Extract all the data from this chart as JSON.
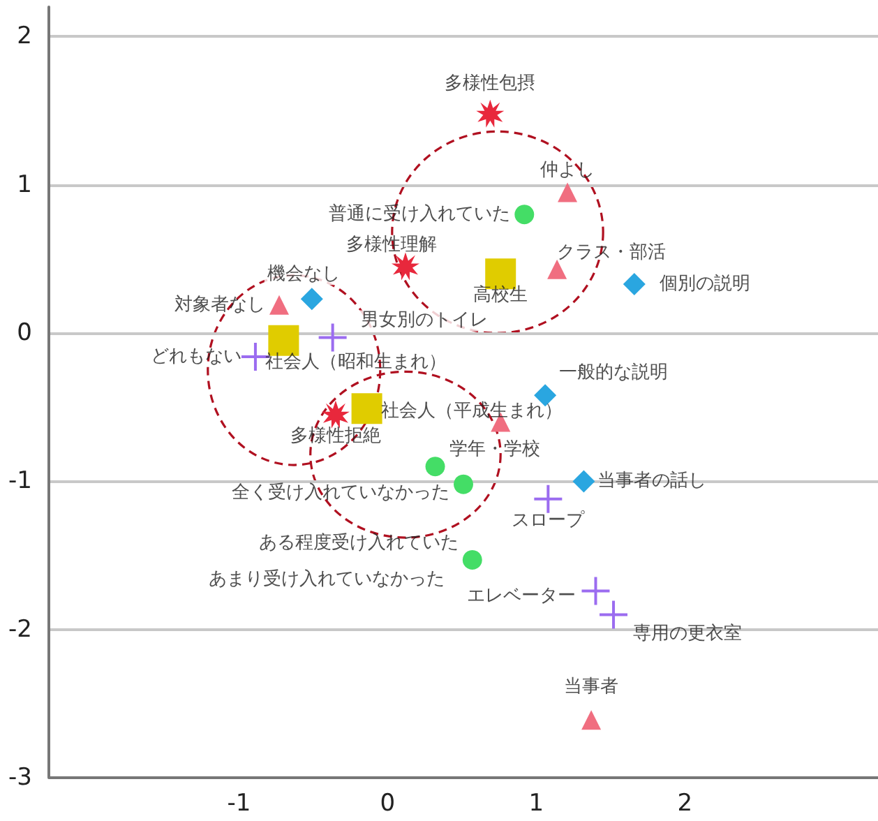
{
  "chart_data": {
    "type": "scatter",
    "xlim": [
      -2.28,
      3.3
    ],
    "ylim": [
      -3,
      2.2
    ],
    "xticks": [
      -1,
      0,
      1,
      2
    ],
    "yticks": [
      -3,
      -2,
      -1,
      0,
      1,
      2
    ],
    "grid": "y",
    "series": [
      {
        "color": "#e8283c",
        "marker": "star",
        "x": [
          0.69,
          0.12,
          -0.35
        ],
        "values": [
          1.48,
          0.45,
          -0.55
        ]
      },
      {
        "color": "#e0cc00",
        "marker": "square",
        "x": [
          0.76,
          -0.7,
          -0.14
        ],
        "values": [
          0.4,
          -0.05,
          -0.51
        ]
      },
      {
        "color": "#44dd66",
        "marker": "circle",
        "x": [
          0.92,
          0.32,
          0.51,
          0.57
        ],
        "values": [
          0.8,
          -0.9,
          -1.02,
          -1.53
        ]
      },
      {
        "color": "#f06e80",
        "marker": "triangle",
        "x": [
          1.21,
          1.14,
          -0.73,
          0.76,
          1.37
        ],
        "values": [
          0.95,
          0.43,
          0.19,
          -0.6,
          -2.61
        ]
      },
      {
        "color": "#2aa6e0",
        "marker": "diamond",
        "x": [
          -0.51,
          1.66,
          1.06,
          1.32
        ],
        "values": [
          0.23,
          0.33,
          -0.42,
          -1.0
        ]
      },
      {
        "color": "#9b6cf0",
        "marker": "cross",
        "x": [
          -0.89,
          -0.37,
          1.08,
          1.4,
          1.52
        ],
        "values": [
          -0.16,
          -0.03,
          -1.12,
          -1.74,
          -1.9
        ]
      }
    ],
    "annotations": [
      {
        "text": "多様性包摂",
        "x": 0.69,
        "y": 1.48
      },
      {
        "text": "多様性理解",
        "x": 0.12,
        "y": 0.45
      },
      {
        "text": "多様性拒絶",
        "x": -0.35,
        "y": -0.55
      },
      {
        "text": "高校生",
        "x": 0.76,
        "y": 0.4
      },
      {
        "text": "社会人（昭和生まれ）",
        "x": -0.7,
        "y": -0.05
      },
      {
        "text": "社会人（平成生まれ）",
        "x": -0.14,
        "y": -0.51
      },
      {
        "text": "普通に受け入れていた",
        "x": 0.92,
        "y": 0.8
      },
      {
        "text": "学年・学校",
        "x": 0.32,
        "y": -0.9
      },
      {
        "text": "全く受け入れていなかった",
        "x": 0.51,
        "y": -1.02
      },
      {
        "text": "ある程度受け入れていた",
        "x": 0.57,
        "y": -1.53
      },
      {
        "text": "あまり受け入れていなかった",
        "x": 0.57,
        "y": -1.53
      },
      {
        "text": "仲よし",
        "x": 1.21,
        "y": 0.95
      },
      {
        "text": "クラス・部活",
        "x": 1.14,
        "y": 0.43
      },
      {
        "text": "対象者なし",
        "x": -0.73,
        "y": 0.19
      },
      {
        "text": "当事者",
        "x": 1.37,
        "y": -2.61
      },
      {
        "text": "機会なし",
        "x": -0.51,
        "y": 0.23
      },
      {
        "text": "個別の説明",
        "x": 1.66,
        "y": 0.33
      },
      {
        "text": "一般的な説明",
        "x": 1.06,
        "y": -0.42
      },
      {
        "text": "当事者の話し",
        "x": 1.32,
        "y": -1.0
      },
      {
        "text": "どれもない",
        "x": -0.89,
        "y": -0.16
      },
      {
        "text": "男女別のトイレ",
        "x": -0.37,
        "y": -0.03
      },
      {
        "text": "スロープ",
        "x": 1.08,
        "y": -1.12
      },
      {
        "text": "エレベーター",
        "x": 1.4,
        "y": -1.74
      },
      {
        "text": "専用の更衣室",
        "x": 1.52,
        "y": -1.9
      }
    ]
  }
}
